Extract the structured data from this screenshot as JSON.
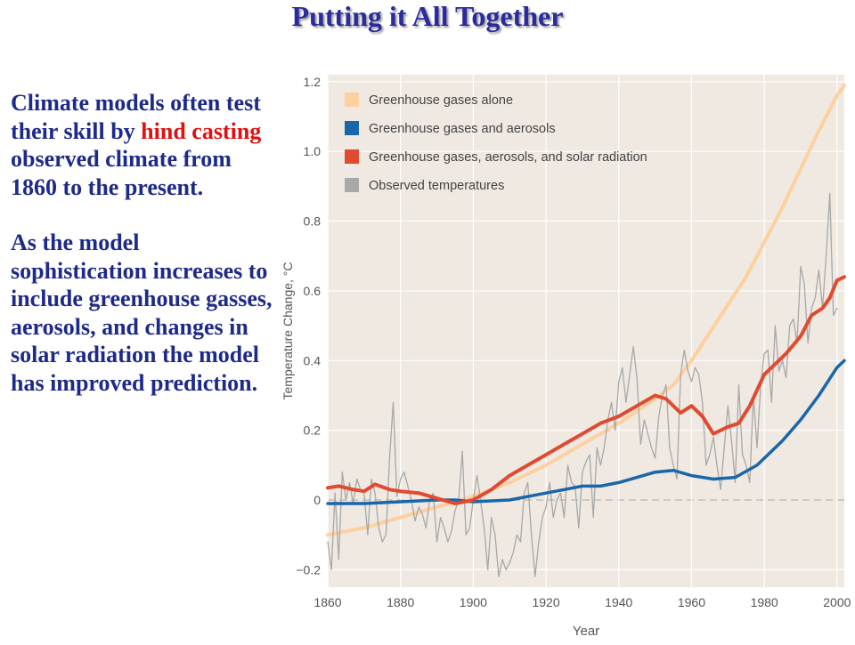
{
  "slide": {
    "title": "Putting it All Together",
    "para1": {
      "before": "Climate models often test their skill by ",
      "highlight": "hind casting",
      "after": " observed climate from 1860 to the present."
    },
    "para2": "As the model sophistication increases to include greenhouse gasses, aerosols, and changes in solar radiation the model has improved prediction."
  },
  "colors": {
    "title": "#2b2b9e",
    "body": "#1e2a8a",
    "highlight": "#e01010",
    "plot_bg": "#efe9e1",
    "ghg": "#fdd0a0",
    "aerosol": "#1a66aa",
    "solar": "#e04a30",
    "observed": "#a8a8a8"
  },
  "chart_data": {
    "type": "line",
    "xlabel": "Year",
    "ylabel": "Temperature Change, °C",
    "xlim": [
      1860,
      2002
    ],
    "ylim": [
      -0.25,
      1.22
    ],
    "xticks": [
      1860,
      1880,
      1900,
      1920,
      1940,
      1960,
      1980,
      2000
    ],
    "yticks": [
      -0.2,
      0,
      0.2,
      0.4,
      0.6,
      0.8,
      1.0,
      1.2
    ],
    "ytick_labels": [
      "−0.2",
      "0",
      "0.2",
      "0.4",
      "0.6",
      "0.8",
      "1.0",
      "1.2"
    ],
    "zero_line": "dashed",
    "legend_position": "top-left",
    "series": [
      {
        "name": "Greenhouse gases alone",
        "color": "#fdd0a0",
        "x": [
          1860,
          1870,
          1880,
          1890,
          1900,
          1910,
          1920,
          1930,
          1940,
          1950,
          1955,
          1960,
          1965,
          1970,
          1975,
          1980,
          1985,
          1990,
          1995,
          2000,
          2002
        ],
        "y": [
          -0.1,
          -0.08,
          -0.05,
          -0.02,
          0.01,
          0.05,
          0.1,
          0.16,
          0.22,
          0.29,
          0.33,
          0.4,
          0.48,
          0.56,
          0.64,
          0.74,
          0.84,
          0.95,
          1.06,
          1.16,
          1.19
        ]
      },
      {
        "name": "Greenhouse gases and aerosols",
        "color": "#1a66aa",
        "x": [
          1860,
          1870,
          1880,
          1890,
          1895,
          1900,
          1910,
          1920,
          1925,
          1930,
          1935,
          1940,
          1945,
          1950,
          1955,
          1960,
          1966,
          1972,
          1978,
          1985,
          1990,
          1995,
          2000,
          2002
        ],
        "y": [
          -0.01,
          -0.01,
          -0.005,
          0.0,
          0.0,
          -0.005,
          0.0,
          0.02,
          0.03,
          0.04,
          0.04,
          0.05,
          0.065,
          0.08,
          0.085,
          0.07,
          0.06,
          0.065,
          0.1,
          0.17,
          0.23,
          0.3,
          0.38,
          0.4
        ]
      },
      {
        "name": "Greenhouse gases, aerosols, and solar radiation",
        "color": "#e04a30",
        "x": [
          1860,
          1863,
          1867,
          1870,
          1873,
          1877,
          1880,
          1885,
          1890,
          1895,
          1900,
          1905,
          1910,
          1915,
          1920,
          1925,
          1930,
          1935,
          1940,
          1945,
          1950,
          1953,
          1957,
          1960,
          1963,
          1966,
          1970,
          1973,
          1976,
          1980,
          1983,
          1986,
          1990,
          1993,
          1996,
          1998,
          2000,
          2002
        ],
        "y": [
          0.035,
          0.04,
          0.03,
          0.025,
          0.045,
          0.03,
          0.025,
          0.02,
          0.005,
          -0.01,
          0.0,
          0.03,
          0.07,
          0.1,
          0.13,
          0.16,
          0.19,
          0.22,
          0.24,
          0.27,
          0.3,
          0.29,
          0.25,
          0.27,
          0.24,
          0.19,
          0.21,
          0.22,
          0.27,
          0.36,
          0.39,
          0.42,
          0.47,
          0.53,
          0.55,
          0.58,
          0.63,
          0.64
        ]
      },
      {
        "name": "Observed temperatures",
        "color": "#a8a8a8",
        "x": [
          1860,
          1861,
          1862,
          1863,
          1864,
          1865,
          1866,
          1867,
          1868,
          1869,
          1870,
          1871,
          1872,
          1873,
          1874,
          1875,
          1876,
          1877,
          1878,
          1879,
          1880,
          1881,
          1882,
          1883,
          1884,
          1885,
          1886,
          1887,
          1888,
          1889,
          1890,
          1891,
          1892,
          1893,
          1894,
          1895,
          1896,
          1897,
          1898,
          1899,
          1900,
          1901,
          1902,
          1903,
          1904,
          1905,
          1906,
          1907,
          1908,
          1909,
          1910,
          1911,
          1912,
          1913,
          1914,
          1915,
          1916,
          1917,
          1918,
          1919,
          1920,
          1921,
          1922,
          1923,
          1924,
          1925,
          1926,
          1927,
          1928,
          1929,
          1930,
          1931,
          1932,
          1933,
          1934,
          1935,
          1936,
          1937,
          1938,
          1939,
          1940,
          1941,
          1942,
          1943,
          1944,
          1945,
          1946,
          1947,
          1948,
          1949,
          1950,
          1951,
          1952,
          1953,
          1954,
          1955,
          1956,
          1957,
          1958,
          1959,
          1960,
          1961,
          1962,
          1963,
          1964,
          1965,
          1966,
          1967,
          1968,
          1969,
          1970,
          1971,
          1972,
          1973,
          1974,
          1975,
          1976,
          1977,
          1978,
          1979,
          1980,
          1981,
          1982,
          1983,
          1984,
          1985,
          1986,
          1987,
          1988,
          1989,
          1990,
          1991,
          1992,
          1993,
          1994,
          1995,
          1996,
          1997,
          1998,
          1999,
          2000
        ],
        "y": [
          -0.12,
          -0.2,
          0.02,
          -0.17,
          0.08,
          0.0,
          0.05,
          -0.01,
          0.06,
          0.03,
          0.02,
          -0.1,
          0.06,
          0.02,
          -0.08,
          -0.12,
          -0.1,
          0.12,
          0.28,
          0.01,
          0.06,
          0.08,
          0.04,
          0.0,
          -0.06,
          -0.02,
          -0.04,
          -0.08,
          0.0,
          0.02,
          -0.12,
          -0.05,
          -0.08,
          -0.12,
          -0.09,
          -0.03,
          0.0,
          0.14,
          -0.1,
          -0.08,
          0.0,
          0.07,
          0.0,
          -0.08,
          -0.2,
          -0.05,
          -0.1,
          -0.22,
          -0.17,
          -0.2,
          -0.18,
          -0.15,
          -0.1,
          -0.12,
          0.02,
          0.05,
          -0.1,
          -0.22,
          -0.12,
          -0.05,
          -0.02,
          0.05,
          -0.05,
          0.0,
          0.02,
          -0.05,
          0.1,
          0.05,
          0.04,
          -0.08,
          0.08,
          0.11,
          0.13,
          -0.05,
          0.15,
          0.1,
          0.15,
          0.23,
          0.28,
          0.2,
          0.34,
          0.38,
          0.28,
          0.36,
          0.44,
          0.35,
          0.16,
          0.23,
          0.19,
          0.15,
          0.12,
          0.24,
          0.3,
          0.33,
          0.15,
          0.1,
          0.06,
          0.36,
          0.43,
          0.37,
          0.34,
          0.38,
          0.36,
          0.28,
          0.1,
          0.13,
          0.18,
          0.1,
          0.03,
          0.15,
          0.27,
          0.17,
          0.05,
          0.33,
          0.13,
          0.1,
          0.05,
          0.3,
          0.15,
          0.33,
          0.42,
          0.43,
          0.28,
          0.5,
          0.37,
          0.4,
          0.35,
          0.5,
          0.52,
          0.45,
          0.67,
          0.62,
          0.45,
          0.55,
          0.58,
          0.66,
          0.55,
          0.7,
          0.88,
          0.53,
          0.55
        ]
      }
    ]
  }
}
